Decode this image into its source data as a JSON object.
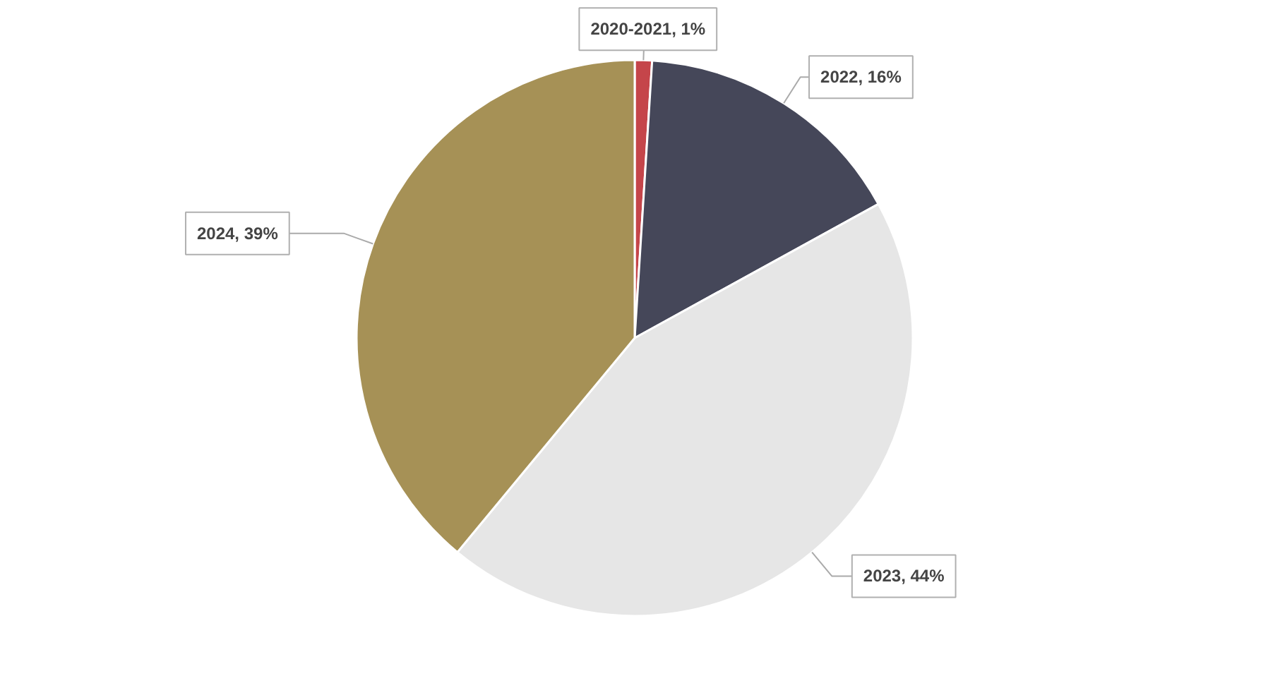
{
  "chart_data": {
    "type": "pie",
    "categories": [
      "2020-2021",
      "2022",
      "2023",
      "2024"
    ],
    "values": [
      1,
      16,
      44,
      39
    ],
    "colors": [
      "#c5454a",
      "#454759",
      "#e6e6e6",
      "#a69156"
    ],
    "value_labels": [
      "1%",
      "16%",
      "44%",
      "39%"
    ]
  }
}
